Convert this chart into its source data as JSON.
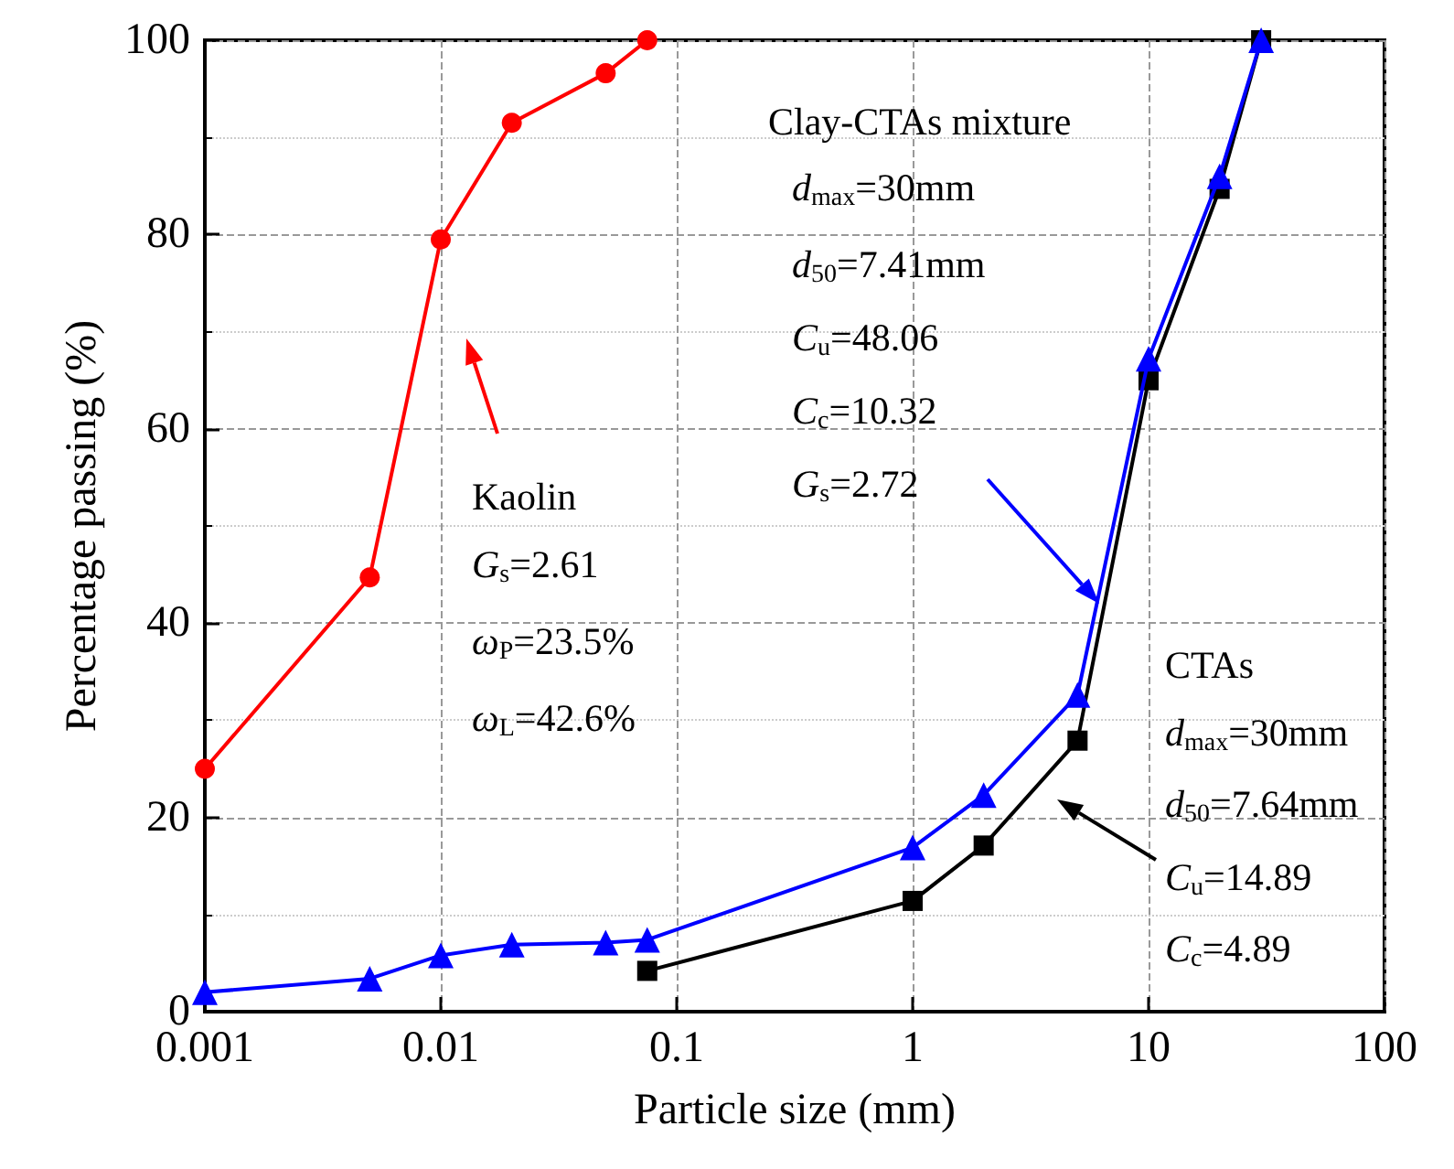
{
  "chart_data": {
    "type": "line",
    "xlabel": "Particle size (mm)",
    "ylabel": "Percentage passing (%)",
    "log": "x",
    "grid": true,
    "xlim": [
      0.001,
      100
    ],
    "xticks": [
      0.001,
      0.01,
      0.1,
      1,
      10,
      100
    ],
    "ylim": [
      0,
      100
    ],
    "yticks": [
      0,
      20,
      40,
      60,
      80,
      100
    ],
    "series": [
      {
        "color": "#ff0000",
        "marker": "circle",
        "x": [
          0.001,
          0.005,
          0.01,
          0.02,
          0.05,
          0.075
        ],
        "values": [
          25,
          44.7,
          79.5,
          91.5,
          96.6,
          100
        ]
      },
      {
        "color": "#000000",
        "marker": "square",
        "x": [
          0.075,
          1,
          2,
          5,
          10,
          20,
          30
        ],
        "values": [
          4.2,
          11.4,
          17.1,
          27.9,
          65,
          84.7,
          100
        ]
      },
      {
        "color": "#0000ff",
        "marker": "triangle",
        "x": [
          0.001,
          0.005,
          0.01,
          0.02,
          0.05,
          0.075,
          1,
          2,
          5,
          10,
          20,
          30
        ],
        "values": [
          2,
          3.4,
          5.8,
          6.9,
          7.1,
          7.4,
          16.9,
          22.3,
          32.6,
          67.2,
          86,
          100
        ]
      }
    ],
    "annotations": [
      "Kaolin",
      "G$_{s}$=2.61",
      "ω$_{P}$=23.5%",
      "ω$_{L}$=42.6%",
      "Clay-CTAs mixture",
      "d$_{max}$=30mm",
      "d$_{50}$=7.41mm",
      "C$_{u}$=48.06",
      "C$_{c}$=10.32",
      "G$_{s}$=2.72",
      "CTAs",
      "d$_{max}$=30mm",
      "d$_{50}$=7.64mm",
      "C$_{u}$=14.89",
      "C$_{c}$=4.89"
    ]
  }
}
